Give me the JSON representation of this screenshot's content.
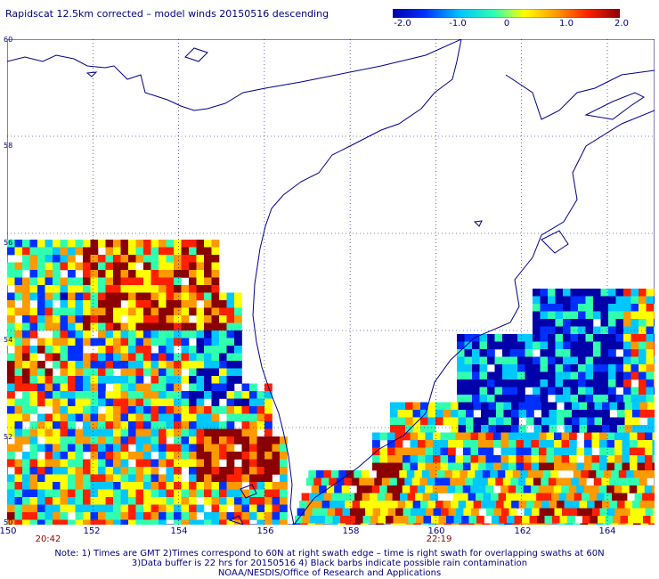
{
  "title": "Rapidscat 12.5km corrected – model winds 20150516 descending",
  "colorbar": {
    "ticks": [
      "-2.0",
      "-1.0",
      "0",
      "1.0",
      "2.0"
    ],
    "range": [
      -2.0,
      2.0
    ],
    "stops": [
      "#0000aa",
      "#0030ff",
      "#00c8ff",
      "#30ffb0",
      "#ffff00",
      "#ff9900",
      "#ff2000",
      "#8b0000"
    ]
  },
  "map": {
    "lon_labels": [
      "150",
      "152",
      "154",
      "156",
      "158",
      "160",
      "162",
      "164"
    ],
    "lat_labels": [
      "60",
      "58",
      "56",
      "54",
      "52",
      "50"
    ],
    "lon_range": [
      150,
      165
    ],
    "lat_range": [
      50,
      60
    ],
    "grid_lines": "dotted",
    "coastline_color": "#00008b",
    "land_color": "#ffffff"
  },
  "times": {
    "left": "20:42",
    "right": "22:19"
  },
  "notes": {
    "line1": "Note: 1) Times are GMT 2)Times correspond to 60N at right swath edge – time is right swath for overlapping swaths at 60N",
    "line2": "3)Data buffer is 22 hrs for 20150516 4) Black barbs indicate possible rain contamination",
    "line3": "NOAA/NESDIS/Office of Research and Applications"
  }
}
